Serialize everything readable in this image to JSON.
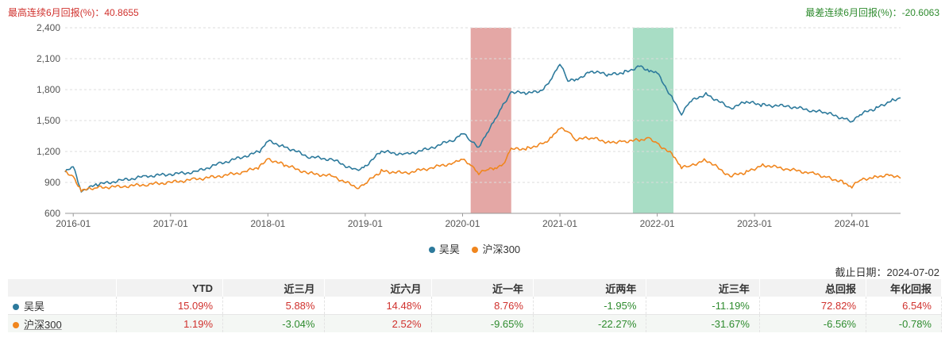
{
  "header": {
    "best_label": "最高连续6月回报(%)：40.8655",
    "worst_label": "最差连续6月回报(%)：-20.6063"
  },
  "chart_data": {
    "type": "line",
    "x_ticks": [
      "2016-01",
      "2017-01",
      "2018-01",
      "2019-01",
      "2020-01",
      "2021-01",
      "2022-01",
      "2023-01",
      "2024-01"
    ],
    "y_ticks": [
      "2,400",
      "2,100",
      "1,800",
      "1,500",
      "1,200",
      "900",
      "600"
    ],
    "ylim": [
      600,
      2400
    ],
    "xlim": [
      "2015-12",
      "2024-07"
    ],
    "grid": "horizontal-dashed",
    "legend_position": "bottom-center",
    "highlight_regions": [
      {
        "start": "2020-02",
        "end": "2020-07",
        "color": "#e3a2a0",
        "meaning": "best 6 months"
      },
      {
        "start": "2021-10",
        "end": "2022-03",
        "color": "#a3dbc2",
        "meaning": "worst 6 months"
      }
    ],
    "series": [
      {
        "name": "吴昊",
        "color": "#2d7a9c",
        "points": [
          [
            "2015-12",
            1000
          ],
          [
            "2016-01",
            1050
          ],
          [
            "2016-02",
            820
          ],
          [
            "2016-04",
            880
          ],
          [
            "2016-07",
            920
          ],
          [
            "2016-10",
            960
          ],
          [
            "2017-01",
            980
          ],
          [
            "2017-04",
            1000
          ],
          [
            "2017-07",
            1080
          ],
          [
            "2017-10",
            1150
          ],
          [
            "2017-12",
            1200
          ],
          [
            "2018-01",
            1300
          ],
          [
            "2018-03",
            1250
          ],
          [
            "2018-06",
            1150
          ],
          [
            "2018-09",
            1120
          ],
          [
            "2018-12",
            1010
          ],
          [
            "2019-01",
            1060
          ],
          [
            "2019-03",
            1200
          ],
          [
            "2019-06",
            1170
          ],
          [
            "2019-09",
            1230
          ],
          [
            "2019-12",
            1320
          ],
          [
            "2020-01",
            1380
          ],
          [
            "2020-02",
            1300
          ],
          [
            "2020-03",
            1250
          ],
          [
            "2020-04",
            1380
          ],
          [
            "2020-05",
            1500
          ],
          [
            "2020-06",
            1650
          ],
          [
            "2020-07",
            1780
          ],
          [
            "2020-09",
            1760
          ],
          [
            "2020-11",
            1800
          ],
          [
            "2020-12",
            1920
          ],
          [
            "2021-01",
            2060
          ],
          [
            "2021-02",
            1880
          ],
          [
            "2021-03",
            1900
          ],
          [
            "2021-05",
            1980
          ],
          [
            "2021-07",
            1940
          ],
          [
            "2021-09",
            1970
          ],
          [
            "2021-11",
            2030
          ],
          [
            "2021-12",
            1980
          ],
          [
            "2022-01",
            1960
          ],
          [
            "2022-03",
            1700
          ],
          [
            "2022-04",
            1570
          ],
          [
            "2022-05",
            1680
          ],
          [
            "2022-07",
            1760
          ],
          [
            "2022-10",
            1620
          ],
          [
            "2022-12",
            1680
          ],
          [
            "2023-02",
            1650
          ],
          [
            "2023-05",
            1640
          ],
          [
            "2023-08",
            1600
          ],
          [
            "2023-10",
            1570
          ],
          [
            "2023-12",
            1520
          ],
          [
            "2024-01",
            1500
          ],
          [
            "2024-02",
            1560
          ],
          [
            "2024-04",
            1620
          ],
          [
            "2024-06",
            1700
          ],
          [
            "2024-07",
            1720
          ]
        ]
      },
      {
        "name": "沪深300",
        "color": "#f0861e",
        "points": [
          [
            "2015-12",
            1000
          ],
          [
            "2016-01",
            960
          ],
          [
            "2016-02",
            820
          ],
          [
            "2016-04",
            850
          ],
          [
            "2016-07",
            860
          ],
          [
            "2016-10",
            880
          ],
          [
            "2017-01",
            900
          ],
          [
            "2017-04",
            930
          ],
          [
            "2017-07",
            960
          ],
          [
            "2017-10",
            1000
          ],
          [
            "2017-12",
            1050
          ],
          [
            "2018-01",
            1130
          ],
          [
            "2018-03",
            1070
          ],
          [
            "2018-06",
            990
          ],
          [
            "2018-09",
            960
          ],
          [
            "2018-12",
            850
          ],
          [
            "2019-01",
            890
          ],
          [
            "2019-03",
            1010
          ],
          [
            "2019-06",
            990
          ],
          [
            "2019-09",
            1040
          ],
          [
            "2019-12",
            1090
          ],
          [
            "2020-01",
            1120
          ],
          [
            "2020-02",
            1080
          ],
          [
            "2020-03",
            990
          ],
          [
            "2020-04",
            1020
          ],
          [
            "2020-05",
            1040
          ],
          [
            "2020-06",
            1080
          ],
          [
            "2020-07",
            1220
          ],
          [
            "2020-09",
            1230
          ],
          [
            "2020-11",
            1280
          ],
          [
            "2020-12",
            1340
          ],
          [
            "2021-01",
            1420
          ],
          [
            "2021-02",
            1400
          ],
          [
            "2021-03",
            1320
          ],
          [
            "2021-05",
            1330
          ],
          [
            "2021-07",
            1290
          ],
          [
            "2021-09",
            1300
          ],
          [
            "2021-11",
            1310
          ],
          [
            "2021-12",
            1320
          ],
          [
            "2022-01",
            1280
          ],
          [
            "2022-03",
            1160
          ],
          [
            "2022-04",
            1040
          ],
          [
            "2022-05",
            1060
          ],
          [
            "2022-07",
            1120
          ],
          [
            "2022-10",
            960
          ],
          [
            "2022-12",
            1000
          ],
          [
            "2023-02",
            1070
          ],
          [
            "2023-05",
            1030
          ],
          [
            "2023-08",
            990
          ],
          [
            "2023-10",
            950
          ],
          [
            "2023-12",
            900
          ],
          [
            "2024-01",
            860
          ],
          [
            "2024-02",
            920
          ],
          [
            "2024-04",
            960
          ],
          [
            "2024-06",
            970
          ],
          [
            "2024-07",
            940
          ]
        ]
      }
    ]
  },
  "legend": {
    "items": [
      {
        "name": "吴昊",
        "color": "#2d7a9c"
      },
      {
        "name": "沪深300",
        "color": "#f0861e"
      }
    ]
  },
  "as_of": "截止日期：2024-07-02",
  "table": {
    "headers": [
      "",
      "YTD",
      "近三月",
      "近六月",
      "近一年",
      "近两年",
      "近三年",
      "总回报",
      "年化回报"
    ],
    "rows": [
      {
        "name": "吴昊",
        "color": "#2d7a9c",
        "values": [
          "15.09%",
          "5.88%",
          "14.48%",
          "8.76%",
          "-1.95%",
          "-11.19%",
          "72.82%",
          "6.54%"
        ]
      },
      {
        "name": "沪深300",
        "color": "#f0861e",
        "values": [
          "1.19%",
          "-3.04%",
          "2.52%",
          "-9.65%",
          "-22.27%",
          "-31.67%",
          "-6.56%",
          "-0.78%"
        ]
      }
    ]
  }
}
